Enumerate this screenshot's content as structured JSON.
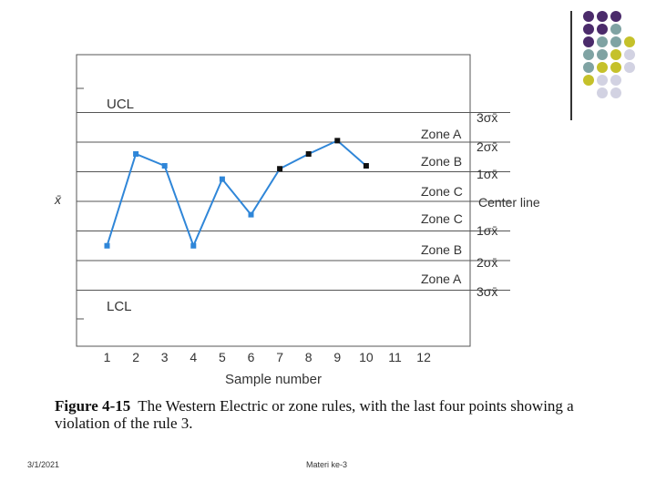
{
  "chart_data": {
    "type": "line",
    "title": "",
    "xlabel": "Sample number",
    "ylabel": "x̄",
    "x_ticks": [
      1,
      2,
      3,
      4,
      5,
      6,
      7,
      8,
      9,
      10,
      11,
      12
    ],
    "xlim": [
      0,
      13
    ],
    "ylim": [
      -3.8,
      3.6
    ],
    "control_limits": {
      "UCL": 3,
      "LCL": -3
    },
    "zone_lines_sigma": [
      3,
      2,
      1,
      0,
      -1,
      -2,
      -3
    ],
    "zones_right": [
      "Zone A",
      "Zone B",
      "Zone C",
      "Center line",
      "Zone C",
      "Zone B",
      "Zone A"
    ],
    "sigma_labels": [
      "3σx̄",
      "2σx̄",
      "1σx̄",
      "1σx̄",
      "2σx̄",
      "3σx̄"
    ],
    "series": [
      {
        "color": "#2f86d8",
        "x": [
          1,
          2,
          3,
          4,
          5,
          6,
          7,
          8,
          9,
          10
        ],
        "y": [
          -1.5,
          1.6,
          1.2,
          -1.5,
          0.75,
          -0.45,
          1.1,
          1.6,
          2.05,
          1.2
        ],
        "highlighted_points": [
          7,
          8,
          9,
          10
        ]
      }
    ],
    "grid": false
  },
  "caption": {
    "figure_label": "Figure 4-15",
    "text": "The Western Electric or zone rules, with the last four points showing a violation of the rule 3."
  },
  "footer": {
    "date": "3/1/2021",
    "title": "Materi ke-3"
  },
  "colors": {
    "purple": "#4b2b6b",
    "teal": "#7fa3a3",
    "olive": "#c5c12a",
    "lavender": "#d2d2e2",
    "line": "#2f86d8"
  }
}
